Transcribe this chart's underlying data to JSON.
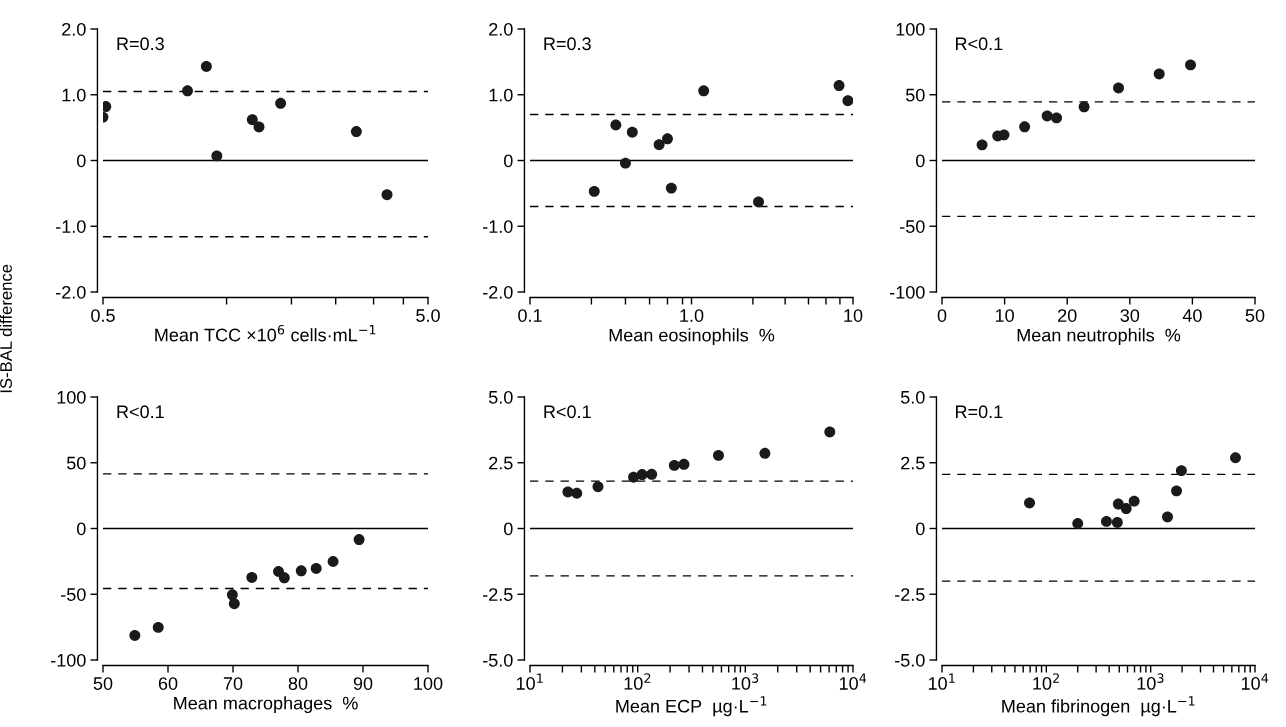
{
  "chart_data": [
    {
      "type": "scatter",
      "ylabel": "IS-BAL difference",
      "xlabel": "Mean TCC ×10$^{6}$ cells·mL$^{−1}$",
      "log": "x",
      "xlim": [
        0.5,
        5.0
      ],
      "xticks": [
        {
          "value": 0.5,
          "label": "0.5"
        },
        {
          "value": 1.2,
          "label": null
        },
        {
          "value": 1.9,
          "label": null
        },
        {
          "value": 2.6,
          "label": null
        },
        {
          "value": 3.4,
          "label": null
        },
        {
          "value": 4.2,
          "label": null
        },
        {
          "value": 5.0,
          "label": "5.0"
        }
      ],
      "ylim": [
        -2.0,
        2.0
      ],
      "yticks": [
        {
          "value": -2.0,
          "label": "-2.0"
        },
        {
          "value": -1.0,
          "label": "-1.0"
        },
        0,
        {
          "value": 1.0,
          "label": "1.0"
        },
        {
          "value": 2.0,
          "label": "2.0"
        }
      ],
      "marker": "circle",
      "grid": false,
      "legend": false,
      "series": [
        {
          "color": "#1a1a1a",
          "x": [
            0.5,
            0.51,
            0.91,
            1.04,
            1.12,
            1.44,
            1.51,
            1.76,
            3.01,
            3.74
          ],
          "values": [
            0.66,
            0.82,
            1.06,
            1.43,
            0.07,
            0.62,
            0.51,
            0.87,
            0.44,
            -0.52
          ]
        }
      ],
      "ref_lines": [
        {
          "axis": "y",
          "value": 0,
          "line_style": "solid",
          "color": "#000000"
        },
        {
          "axis": "y",
          "value": 1.05,
          "line_style": "dashed",
          "color": "#000000"
        },
        {
          "axis": "y",
          "value": -1.16,
          "line_style": "dashed",
          "color": "#000000"
        }
      ],
      "annotations": [
        "R=0.3"
      ]
    },
    {
      "type": "scatter",
      "xlabel": "Mean eosinophils  %",
      "log": "x",
      "xlim": [
        0.1,
        10
      ],
      "xticks": [
        {
          "value": 0.1,
          "label": "0.1"
        },
        {
          "value": 0.24,
          "label": null
        },
        {
          "value": 0.39,
          "label": null
        },
        {
          "value": 0.55,
          "label": null
        },
        {
          "value": 0.71,
          "label": null
        },
        {
          "value": 0.88,
          "label": null
        },
        {
          "value": 1.0,
          "label": "1.0"
        },
        {
          "value": 2.4,
          "label": null
        },
        {
          "value": 3.8,
          "label": null
        },
        {
          "value": 5.3,
          "label": null
        },
        {
          "value": 6.8,
          "label": null
        },
        {
          "value": 8.3,
          "label": null
        },
        10
      ],
      "ylim": [
        -2.0,
        2.0
      ],
      "yticks": [
        {
          "value": -2.0,
          "label": "-2.0"
        },
        {
          "value": -1.0,
          "label": "-1.0"
        },
        0,
        {
          "value": 1.0,
          "label": "1.0"
        },
        {
          "value": 2.0,
          "label": "2.0"
        }
      ],
      "marker": "circle",
      "grid": false,
      "legend": false,
      "series": [
        {
          "color": "#1a1a1a",
          "x": [
            0.25,
            0.34,
            0.39,
            0.43,
            0.63,
            0.71,
            0.75,
            1.19,
            2.6,
            8.2,
            9.3
          ],
          "values": [
            -0.47,
            0.54,
            -0.04,
            0.43,
            0.24,
            0.33,
            -0.42,
            1.06,
            -0.63,
            1.14,
            0.91
          ]
        }
      ],
      "ref_lines": [
        {
          "axis": "y",
          "value": 0,
          "line_style": "solid",
          "color": "#000000"
        },
        {
          "axis": "y",
          "value": 0.7,
          "line_style": "dashed",
          "color": "#000000"
        },
        {
          "axis": "y",
          "value": -0.7,
          "line_style": "dashed",
          "color": "#000000"
        }
      ],
      "annotations": [
        "R=0.3"
      ]
    },
    {
      "type": "scatter",
      "xlabel": "Mean neutrophils  %",
      "xlim": [
        0,
        50
      ],
      "xticks": [
        0,
        10,
        20,
        30,
        40,
        50
      ],
      "ylim": [
        -100,
        100
      ],
      "yticks": [
        -100,
        -50,
        0,
        50,
        100
      ],
      "marker": "circle",
      "grid": false,
      "legend": false,
      "series": [
        {
          "color": "#1a1a1a",
          "x": [
            6.4,
            8.9,
            9.9,
            13.2,
            16.8,
            18.3,
            22.7,
            28.2,
            34.7,
            39.7
          ],
          "values": [
            11.9,
            18.7,
            19.5,
            25.6,
            33.9,
            32.4,
            40.8,
            55.2,
            65.8,
            72.7
          ]
        }
      ],
      "ref_lines": [
        {
          "axis": "y",
          "value": 0,
          "line_style": "solid",
          "color": "#000000"
        },
        {
          "axis": "y",
          "value": 44.6,
          "line_style": "dashed",
          "color": "#000000"
        },
        {
          "axis": "y",
          "value": -42.5,
          "line_style": "dashed",
          "color": "#000000"
        }
      ],
      "annotations": [
        "R<0.1"
      ]
    },
    {
      "type": "scatter",
      "xlabel": "Mean macrophages  %",
      "xlim": [
        50,
        100
      ],
      "xticks": [
        50,
        60,
        70,
        80,
        90,
        100
      ],
      "ylim": [
        -100,
        100
      ],
      "yticks": [
        -100,
        -50,
        0,
        50,
        100
      ],
      "marker": "circle",
      "grid": false,
      "legend": false,
      "series": [
        {
          "color": "#1a1a1a",
          "x": [
            54.9,
            58.5,
            69.9,
            70.2,
            72.9,
            77.0,
            77.9,
            80.5,
            82.8,
            85.4,
            89.4
          ],
          "values": [
            -81.3,
            -75.2,
            -50.4,
            -57.2,
            -37.2,
            -32.7,
            -37.5,
            -32.2,
            -30.4,
            -25.1,
            -8.4
          ]
        }
      ],
      "ref_lines": [
        {
          "axis": "y",
          "value": 0,
          "line_style": "solid",
          "color": "#000000"
        },
        {
          "axis": "y",
          "value": 41.5,
          "line_style": "dashed",
          "color": "#000000"
        },
        {
          "axis": "y",
          "value": -45.6,
          "line_style": "dashed",
          "color": "#000000"
        }
      ],
      "annotations": [
        "R<0.1"
      ]
    },
    {
      "type": "scatter",
      "xlabel": "Mean ECP  µg·L$^{−1}$",
      "log": "x",
      "xlim": [
        10,
        10000
      ],
      "xticks": [
        {
          "value": 10,
          "label": "10$^{1}$"
        },
        {
          "value": 20,
          "label": null
        },
        {
          "value": 30,
          "label": null
        },
        {
          "value": 40,
          "label": null
        },
        {
          "value": 50,
          "label": null
        },
        {
          "value": 60,
          "label": null
        },
        {
          "value": 70,
          "label": null
        },
        {
          "value": 80,
          "label": null
        },
        {
          "value": 90,
          "label": null
        },
        {
          "value": 100,
          "label": "10$^{2}$"
        },
        {
          "value": 200,
          "label": null
        },
        {
          "value": 300,
          "label": null
        },
        {
          "value": 400,
          "label": null
        },
        {
          "value": 500,
          "label": null
        },
        {
          "value": 600,
          "label": null
        },
        {
          "value": 700,
          "label": null
        },
        {
          "value": 800,
          "label": null
        },
        {
          "value": 900,
          "label": null
        },
        {
          "value": 1000,
          "label": "10$^{3}$"
        },
        {
          "value": 2000,
          "label": null
        },
        {
          "value": 3000,
          "label": null
        },
        {
          "value": 4000,
          "label": null
        },
        {
          "value": 5000,
          "label": null
        },
        {
          "value": 6000,
          "label": null
        },
        {
          "value": 7000,
          "label": null
        },
        {
          "value": 8000,
          "label": null
        },
        {
          "value": 9000,
          "label": null
        },
        {
          "value": 10000,
          "label": "10$^{4}$"
        }
      ],
      "ylim": [
        -5.0,
        5.0
      ],
      "yticks": [
        {
          "value": -5.0,
          "label": "-5.0"
        },
        -2.5,
        0,
        2.5,
        {
          "value": 5.0,
          "label": "5.0"
        }
      ],
      "marker": "circle",
      "grid": false,
      "legend": false,
      "series": [
        {
          "color": "#1a1a1a",
          "x": [
            22.5,
            27.2,
            42.8,
            91.6,
            110,
            135,
            219,
            269,
            563,
            1520,
            6090
          ],
          "values": [
            1.39,
            1.34,
            1.59,
            1.95,
            2.05,
            2.06,
            2.4,
            2.44,
            2.78,
            2.86,
            3.67
          ]
        }
      ],
      "ref_lines": [
        {
          "axis": "y",
          "value": 0,
          "line_style": "solid",
          "color": "#000000"
        },
        {
          "axis": "y",
          "value": 1.8,
          "line_style": "dashed",
          "color": "#000000"
        },
        {
          "axis": "y",
          "value": -1.8,
          "line_style": "dashed",
          "color": "#000000"
        }
      ],
      "annotations": [
        "R<0.1"
      ]
    },
    {
      "type": "scatter",
      "xlabel": "Mean fibrinogen  µg·L$^{−1}$",
      "log": "x",
      "xlim": [
        10,
        10000
      ],
      "xticks": [
        {
          "value": 10,
          "label": "10$^{1}$"
        },
        {
          "value": 20,
          "label": null
        },
        {
          "value": 30,
          "label": null
        },
        {
          "value": 40,
          "label": null
        },
        {
          "value": 50,
          "label": null
        },
        {
          "value": 60,
          "label": null
        },
        {
          "value": 70,
          "label": null
        },
        {
          "value": 80,
          "label": null
        },
        {
          "value": 90,
          "label": null
        },
        {
          "value": 100,
          "label": "10$^{2}$"
        },
        {
          "value": 200,
          "label": null
        },
        {
          "value": 300,
          "label": null
        },
        {
          "value": 400,
          "label": null
        },
        {
          "value": 500,
          "label": null
        },
        {
          "value": 600,
          "label": null
        },
        {
          "value": 700,
          "label": null
        },
        {
          "value": 800,
          "label": null
        },
        {
          "value": 900,
          "label": null
        },
        {
          "value": 1000,
          "label": "10$^{3}$"
        },
        {
          "value": 2000,
          "label": null
        },
        {
          "value": 3000,
          "label": null
        },
        {
          "value": 4000,
          "label": null
        },
        {
          "value": 5000,
          "label": null
        },
        {
          "value": 6000,
          "label": null
        },
        {
          "value": 7000,
          "label": null
        },
        {
          "value": 8000,
          "label": null
        },
        {
          "value": 9000,
          "label": null
        },
        {
          "value": 10000,
          "label": "10$^{4}$"
        }
      ],
      "ylim": [
        -5.0,
        5.0
      ],
      "yticks": [
        {
          "value": -5.0,
          "label": "-5.0"
        },
        -2.5,
        0,
        2.5,
        {
          "value": 5.0,
          "label": "5.0"
        }
      ],
      "marker": "circle",
      "grid": false,
      "legend": false,
      "series": [
        {
          "color": "#1a1a1a",
          "x": [
            69,
            200,
            377,
            479,
            490,
            583,
            695,
            1450,
            1770,
            1970,
            6500
          ],
          "values": [
            0.97,
            0.19,
            0.27,
            0.23,
            0.93,
            0.76,
            1.04,
            0.44,
            1.43,
            2.2,
            2.69
          ]
        }
      ],
      "ref_lines": [
        {
          "axis": "y",
          "value": 0,
          "line_style": "solid",
          "color": "#000000"
        },
        {
          "axis": "y",
          "value": 2.06,
          "line_style": "dashed",
          "color": "#000000"
        },
        {
          "axis": "y",
          "value": -2.0,
          "line_style": "dashed",
          "color": "#000000"
        }
      ],
      "annotations": [
        "R=0.1"
      ]
    }
  ]
}
